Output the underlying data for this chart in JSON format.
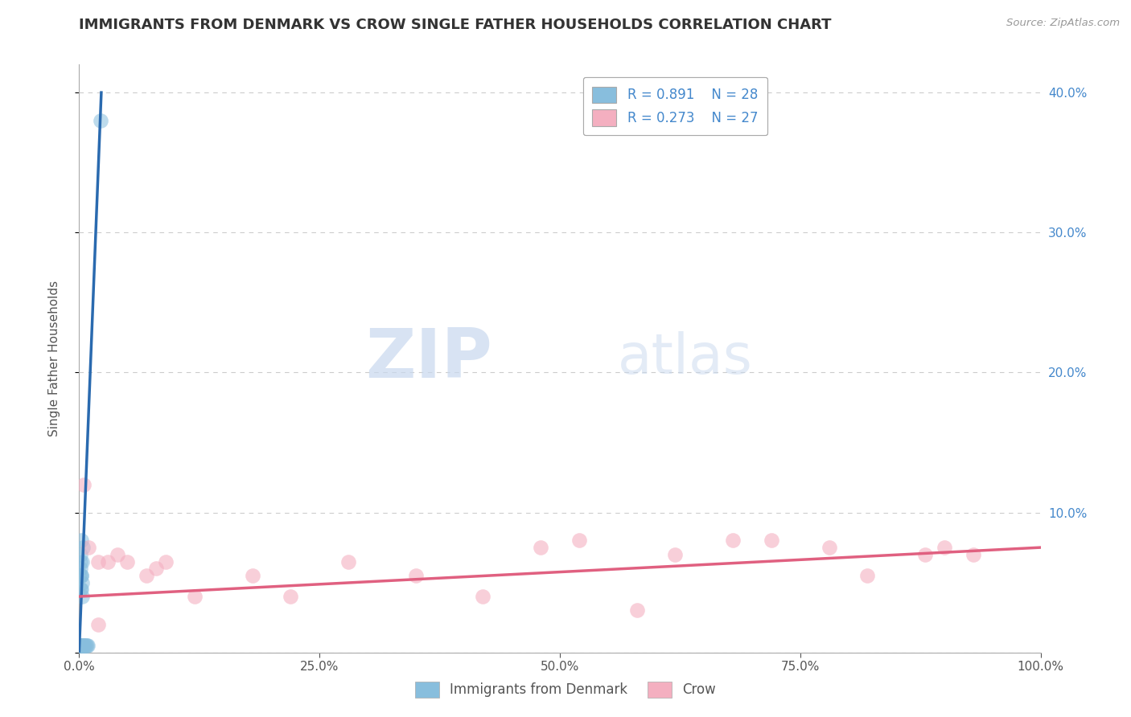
{
  "title": "IMMIGRANTS FROM DENMARK VS CROW SINGLE FATHER HOUSEHOLDS CORRELATION CHART",
  "source": "Source: ZipAtlas.com",
  "ylabel": "Single Father Households",
  "watermark_zip": "ZIP",
  "watermark_atlas": "atlas",
  "legend_entries": [
    {
      "label": "Immigrants from Denmark",
      "R": "0.891",
      "N": "28",
      "color": "#a8c8e8"
    },
    {
      "label": "Crow",
      "R": "0.273",
      "N": "27",
      "color": "#f4afc0"
    }
  ],
  "blue_scatter_x": [
    0.0005,
    0.001,
    0.0015,
    0.002,
    0.0025,
    0.003,
    0.0035,
    0.004,
    0.0045,
    0.005,
    0.006,
    0.007,
    0.008,
    0.009,
    0.001,
    0.002,
    0.003,
    0.001,
    0.002,
    0.003,
    0.004,
    0.002,
    0.001,
    0.001,
    0.0008,
    0.002,
    0.003,
    0.022
  ],
  "blue_scatter_y": [
    0.005,
    0.005,
    0.005,
    0.005,
    0.005,
    0.005,
    0.005,
    0.005,
    0.005,
    0.005,
    0.005,
    0.005,
    0.005,
    0.005,
    0.06,
    0.055,
    0.065,
    0.045,
    0.055,
    0.05,
    0.075,
    0.08,
    0.07,
    0.065,
    0.055,
    0.045,
    0.04,
    0.38
  ],
  "pink_scatter_x": [
    0.005,
    0.01,
    0.02,
    0.03,
    0.04,
    0.05,
    0.07,
    0.08,
    0.09,
    0.12,
    0.18,
    0.22,
    0.28,
    0.35,
    0.42,
    0.48,
    0.52,
    0.58,
    0.62,
    0.68,
    0.72,
    0.78,
    0.82,
    0.88,
    0.9,
    0.93,
    0.02
  ],
  "pink_scatter_y": [
    0.12,
    0.075,
    0.065,
    0.065,
    0.07,
    0.065,
    0.055,
    0.06,
    0.065,
    0.04,
    0.055,
    0.04,
    0.065,
    0.055,
    0.04,
    0.075,
    0.08,
    0.03,
    0.07,
    0.08,
    0.08,
    0.075,
    0.055,
    0.07,
    0.075,
    0.07,
    0.02
  ],
  "blue_line_x": [
    0.0,
    0.023
  ],
  "blue_line_y": [
    0.001,
    0.4
  ],
  "pink_line_x": [
    0.0,
    1.0
  ],
  "pink_line_y": [
    0.04,
    0.075
  ],
  "xlim": [
    0.0,
    1.0
  ],
  "ylim": [
    0.0,
    0.42
  ],
  "xticks": [
    0.0,
    0.25,
    0.5,
    0.75,
    1.0
  ],
  "xtick_labels": [
    "0.0%",
    "25.0%",
    "50.0%",
    "75.0%",
    "100.0%"
  ],
  "yticks": [
    0.0,
    0.1,
    0.2,
    0.3,
    0.4
  ],
  "ytick_labels_right": [
    "",
    "10.0%",
    "20.0%",
    "30.0%",
    "40.0%"
  ],
  "bg_color": "#ffffff",
  "scatter_size": 180,
  "grid_color": "#cccccc",
  "blue_color": "#88bedd",
  "pink_color": "#f4afc0",
  "blue_line_color": "#2a6aaf",
  "pink_line_color": "#e06080",
  "title_color": "#333333",
  "axis_label_color": "#555555",
  "right_ytick_color": "#4488cc",
  "legend_R_color": "#4488cc"
}
